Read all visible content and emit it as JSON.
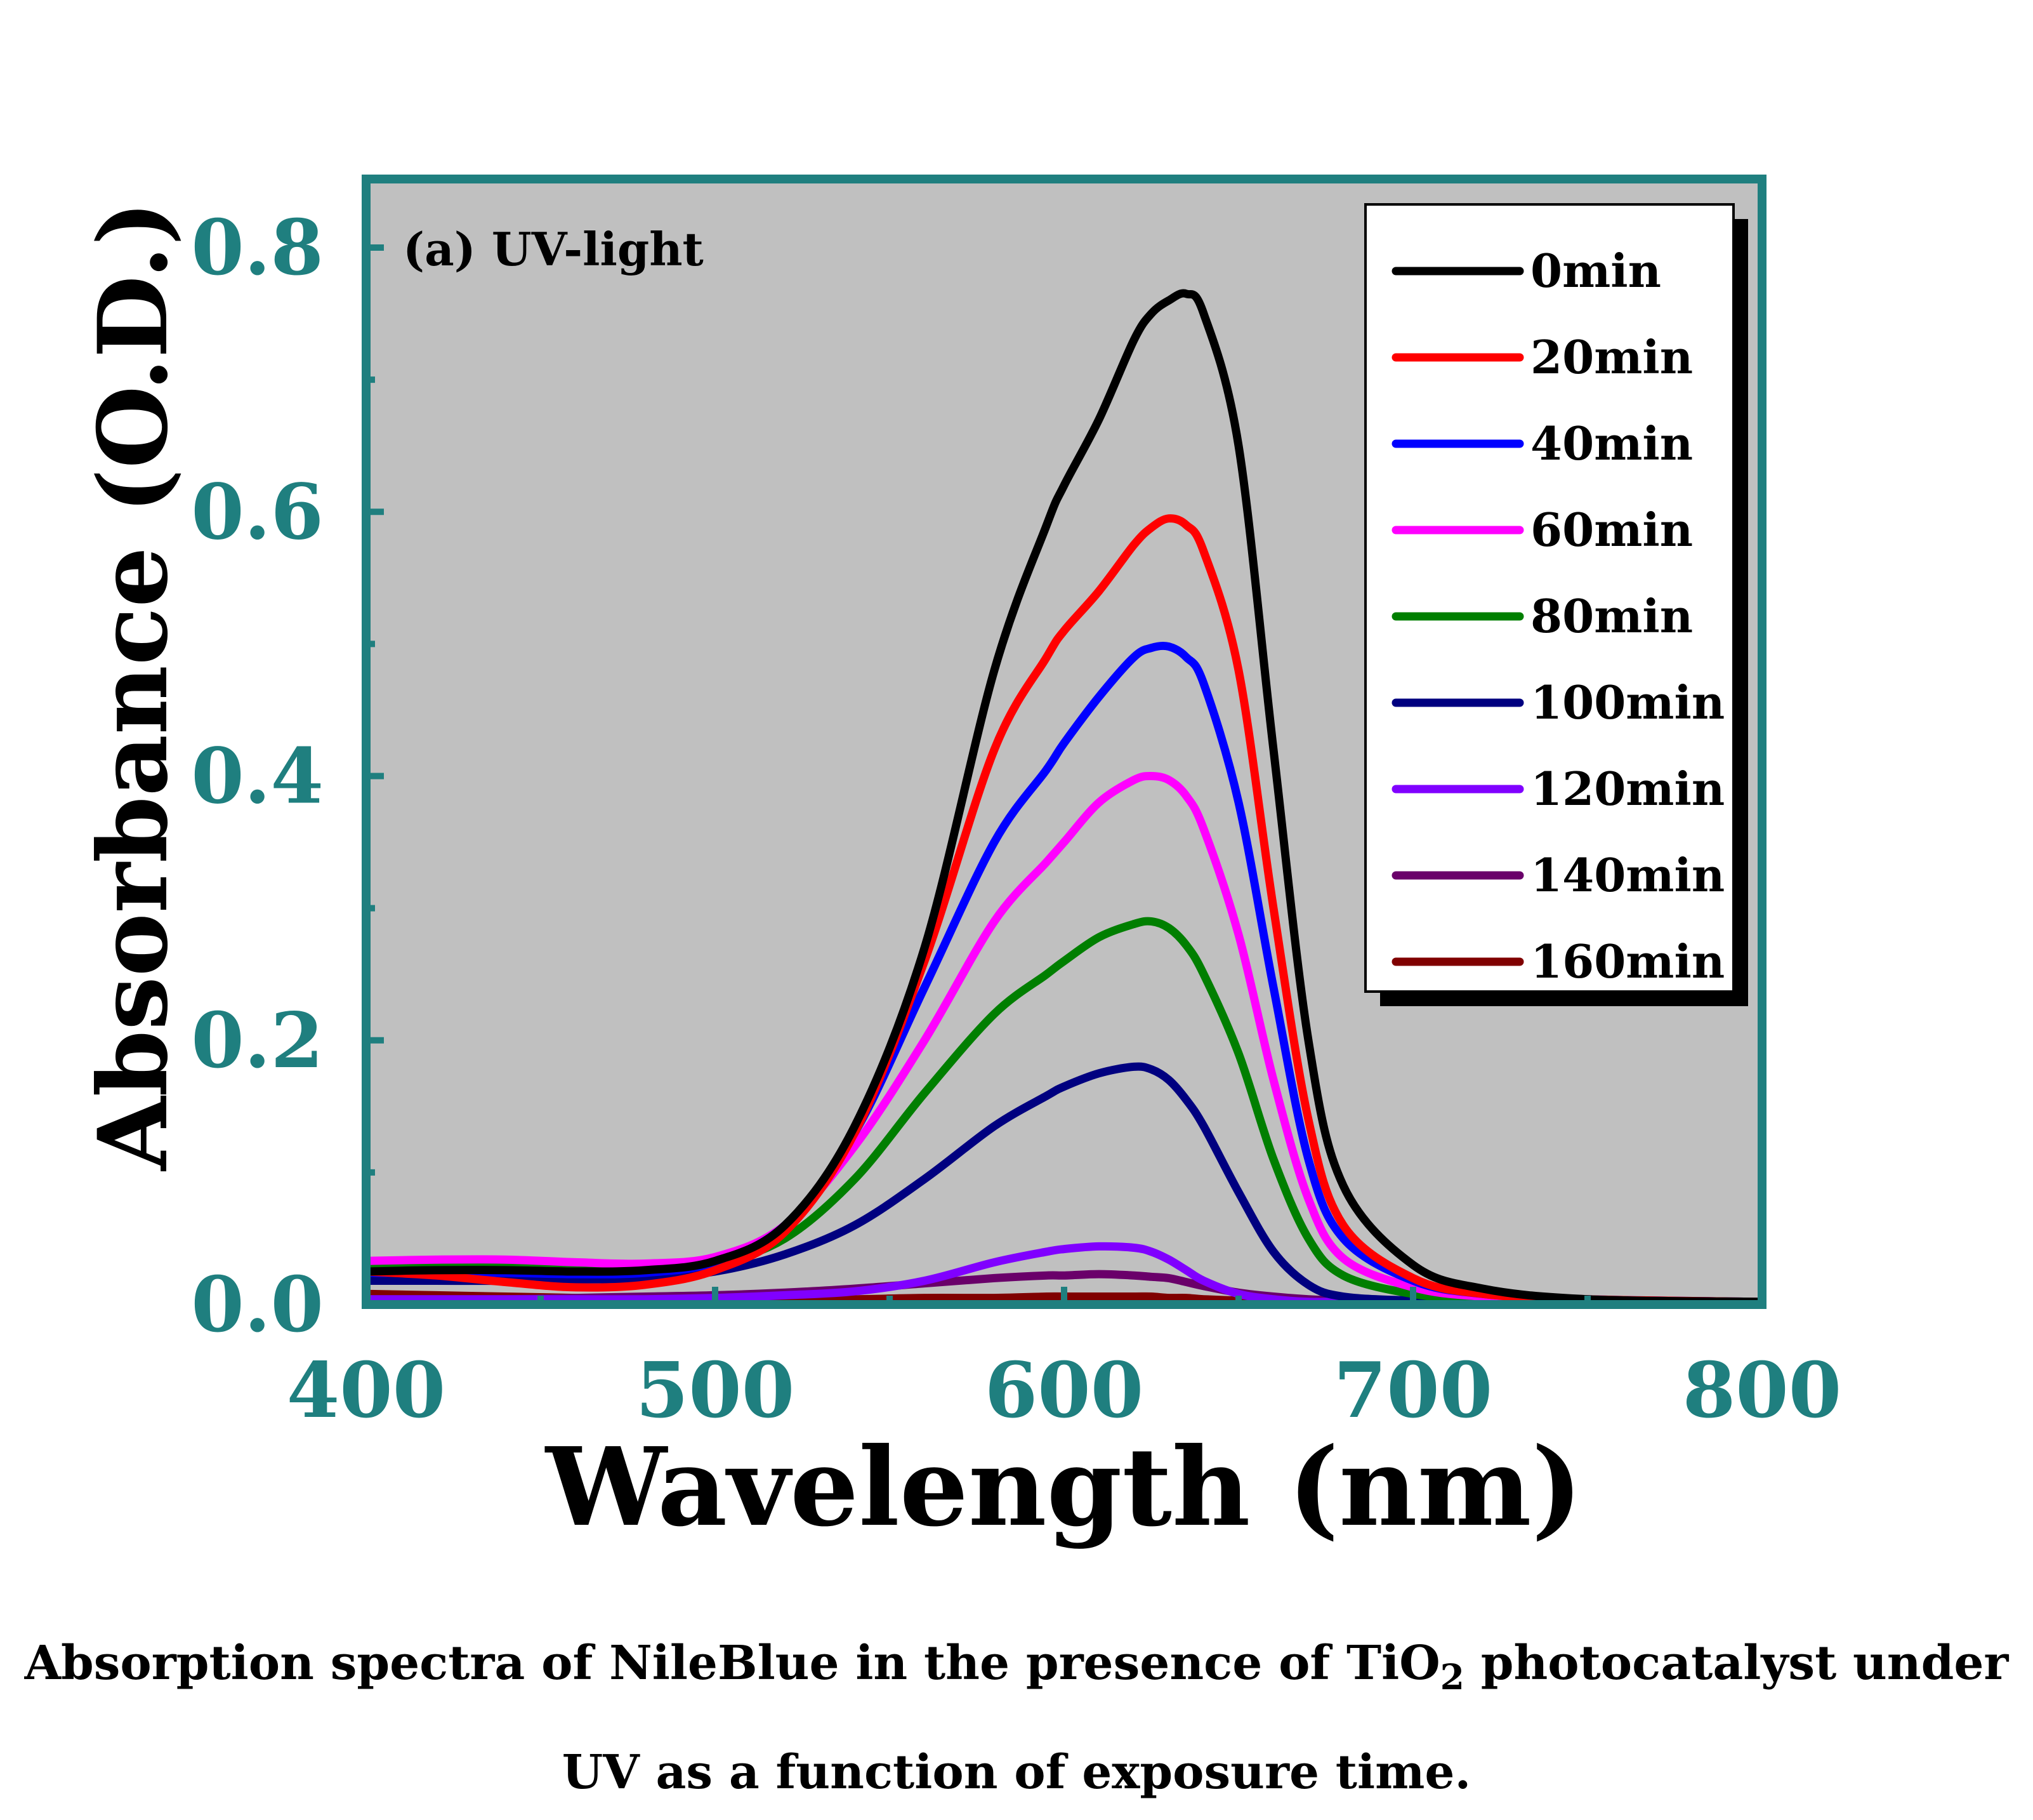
{
  "chart_data": {
    "type": "line",
    "annotation": "(a) UV-light",
    "xlabel": "Wavelength (nm)",
    "ylabel": "Absorbance (O.D.)",
    "xlim": [
      400,
      800
    ],
    "ylim": [
      0,
      0.85
    ],
    "xticks": [
      400,
      500,
      600,
      700,
      800
    ],
    "xtick_labels": [
      "400",
      "500",
      "600",
      "700",
      "800"
    ],
    "yticks": [
      0.0,
      0.2,
      0.4,
      0.6,
      0.8
    ],
    "ytick_labels": [
      "0.0",
      "0.2",
      "0.4",
      "0.6",
      "0.8"
    ],
    "grid": false,
    "background": "#c0c0c0",
    "frame_color": "#1f7f7f",
    "tick_color": "#1f7f7f",
    "legend_position": "top-right",
    "x": [
      400,
      420,
      440,
      460,
      480,
      500,
      520,
      540,
      560,
      580,
      595,
      600,
      610,
      620,
      625,
      630,
      635,
      640,
      650,
      660,
      670,
      680,
      700,
      720,
      750,
      800
    ],
    "series": [
      {
        "name": "0min",
        "color": "#000000",
        "values": [
          0.025,
          0.026,
          0.026,
          0.025,
          0.026,
          0.033,
          0.06,
          0.135,
          0.27,
          0.48,
          0.59,
          0.62,
          0.67,
          0.73,
          0.75,
          0.76,
          0.765,
          0.75,
          0.65,
          0.42,
          0.2,
          0.09,
          0.03,
          0.012,
          0.004,
          0.002
        ]
      },
      {
        "name": "20min",
        "color": "#ff0000",
        "values": [
          0.025,
          0.022,
          0.017,
          0.013,
          0.015,
          0.026,
          0.055,
          0.13,
          0.26,
          0.42,
          0.49,
          0.51,
          0.54,
          0.575,
          0.588,
          0.595,
          0.59,
          0.57,
          0.48,
          0.3,
          0.14,
          0.06,
          0.02,
          0.008,
          0.004,
          0.002
        ]
      },
      {
        "name": "40min",
        "color": "#0000ff",
        "values": [
          0.024,
          0.024,
          0.024,
          0.023,
          0.024,
          0.032,
          0.06,
          0.13,
          0.24,
          0.35,
          0.405,
          0.425,
          0.46,
          0.49,
          0.497,
          0.498,
          0.49,
          0.47,
          0.38,
          0.24,
          0.11,
          0.05,
          0.018,
          0.008,
          0.004,
          0.002
        ]
      },
      {
        "name": "60min",
        "color": "#ff00ff",
        "values": [
          0.033,
          0.034,
          0.034,
          0.032,
          0.031,
          0.036,
          0.06,
          0.12,
          0.2,
          0.29,
          0.335,
          0.35,
          0.38,
          0.397,
          0.4,
          0.397,
          0.385,
          0.36,
          0.28,
          0.17,
          0.08,
          0.035,
          0.013,
          0.006,
          0.003,
          0.002
        ]
      },
      {
        "name": "80min",
        "color": "#007f00",
        "values": [
          0.028,
          0.029,
          0.029,
          0.027,
          0.027,
          0.031,
          0.05,
          0.095,
          0.16,
          0.22,
          0.25,
          0.26,
          0.278,
          0.288,
          0.29,
          0.285,
          0.272,
          0.25,
          0.19,
          0.11,
          0.05,
          0.022,
          0.008,
          0.004,
          0.002,
          0.001
        ]
      },
      {
        "name": "100min",
        "color": "#000080",
        "values": [
          0.018,
          0.018,
          0.018,
          0.019,
          0.02,
          0.025,
          0.038,
          0.06,
          0.095,
          0.135,
          0.158,
          0.165,
          0.175,
          0.18,
          0.178,
          0.17,
          0.155,
          0.135,
          0.085,
          0.04,
          0.015,
          0.006,
          0.003,
          0.002,
          0.001,
          0.001
        ]
      },
      {
        "name": "120min",
        "color": "#8000ff",
        "values": [
          0.004,
          0.004,
          0.004,
          0.004,
          0.004,
          0.005,
          0.007,
          0.01,
          0.018,
          0.032,
          0.04,
          0.042,
          0.044,
          0.043,
          0.04,
          0.034,
          0.026,
          0.018,
          0.008,
          0.004,
          0.002,
          0.002,
          0.001,
          0.001,
          0.001,
          0.001
        ]
      },
      {
        "name": "140min",
        "color": "#6a006a",
        "values": [
          0.004,
          0.004,
          0.004,
          0.005,
          0.006,
          0.007,
          0.009,
          0.012,
          0.016,
          0.02,
          0.022,
          0.022,
          0.023,
          0.022,
          0.021,
          0.02,
          0.017,
          0.014,
          0.009,
          0.006,
          0.004,
          0.003,
          0.002,
          0.001,
          0.001,
          0.001
        ]
      },
      {
        "name": "160min",
        "color": "#800000",
        "values": [
          0.008,
          0.007,
          0.006,
          0.005,
          0.004,
          0.004,
          0.004,
          0.004,
          0.005,
          0.005,
          0.006,
          0.006,
          0.006,
          0.006,
          0.006,
          0.005,
          0.005,
          0.004,
          0.003,
          0.002,
          0.002,
          0.001,
          0.001,
          0.001,
          0.001,
          0.001
        ]
      }
    ]
  },
  "caption": {
    "line1_before": "Absorption spectra of NileBlue in the presence of TiO",
    "line1_subscript": "2",
    "line1_after": " photocatalyst under",
    "line2": "UV as a function of exposure time."
  }
}
